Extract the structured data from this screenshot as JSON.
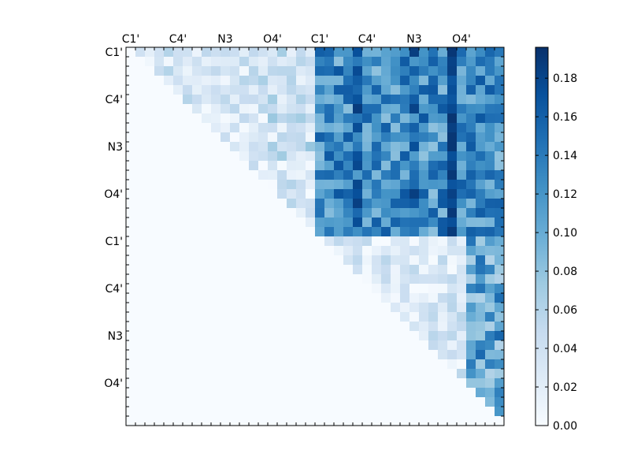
{
  "chart_data": {
    "type": "heatmap",
    "title": "",
    "rows": 40,
    "cols": 40,
    "x_tick_labels": [
      "C1'",
      "C4'",
      "N3",
      "O4'",
      "C1'",
      "C4'",
      "N3",
      "O4'"
    ],
    "y_tick_labels": [
      "C1'",
      "C4'",
      "N3",
      "O4'",
      "C1'",
      "C4'",
      "N3",
      "O4'"
    ],
    "tick_label_index": [
      0,
      5,
      10,
      15,
      20,
      25,
      30,
      35
    ],
    "colorbar": {
      "min": 0.0,
      "max": 0.196,
      "ticks": [
        0.0,
        0.02,
        0.04,
        0.06,
        0.08,
        0.1,
        0.12,
        0.14,
        0.16,
        0.18
      ],
      "tick_labels": [
        "0.00",
        "0.02",
        "0.04",
        "0.06",
        "0.08",
        "0.10",
        "0.12",
        "0.14",
        "0.16",
        "0.18"
      ],
      "colormap": "Blues"
    },
    "blocks": {
      "upper_left_range": [
        0.0,
        0.06
      ],
      "upper_right_range": [
        0.08,
        0.19
      ],
      "lower_right_range": [
        0.0,
        0.19
      ],
      "lower_triangle_value": 0.0
    },
    "grid": false
  }
}
